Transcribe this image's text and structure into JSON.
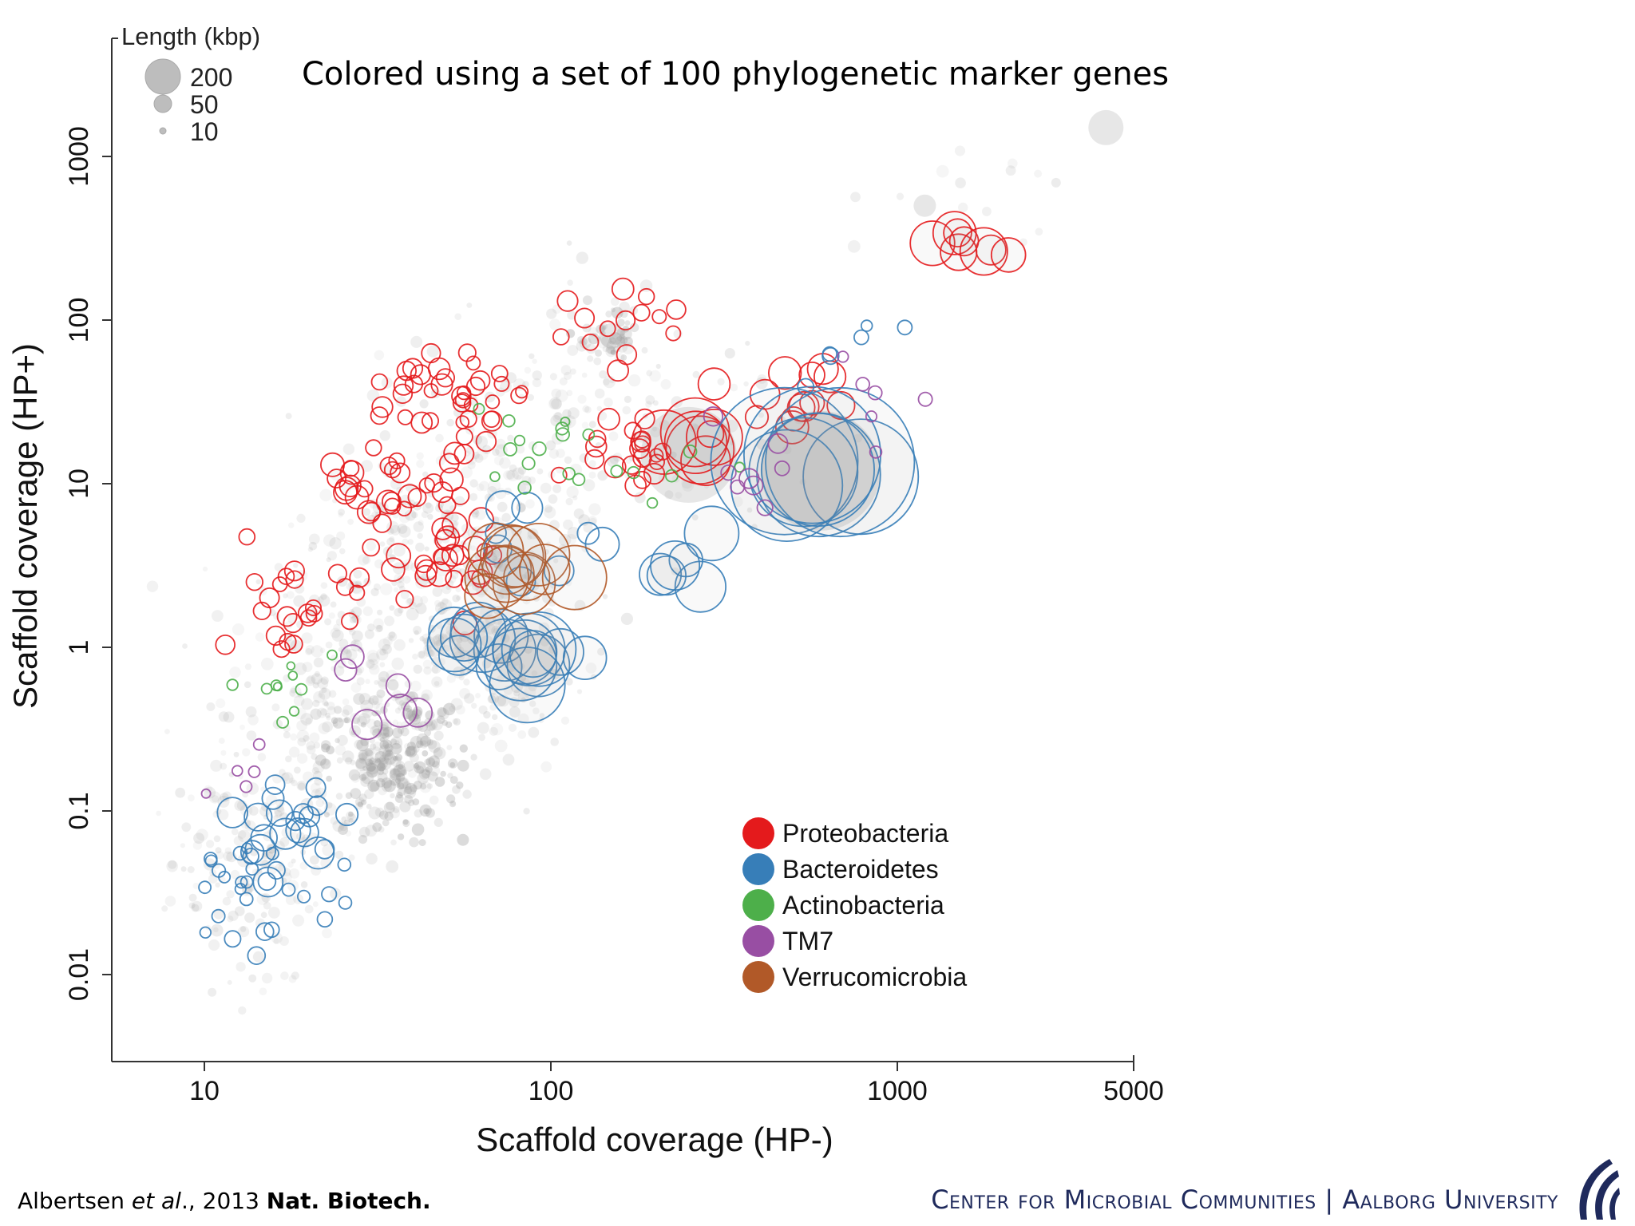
{
  "slide": {
    "title": "Colored using a set of 100 phylogenetic marker genes",
    "citation": {
      "authors_prefix": "Albertsen ",
      "et_al": "et al",
      "year_part": "., 2013 ",
      "journal": "Nat. Biotech."
    },
    "org_left": "Center for Microbial Communities",
    "org_sep": "|",
    "org_right": "Aalborg University",
    "logo_icon": "aalborg-wave-logo-icon"
  },
  "chart_data": {
    "type": "scatter",
    "xlabel": "Scaffold coverage (HP-)",
    "ylabel": "Scaffold coverage (HP+)",
    "xscale": "log",
    "yscale": "log",
    "xlim": [
      5,
      5000
    ],
    "ylim": [
      0.003,
      3000
    ],
    "xticks": [
      10,
      100,
      1000,
      5000
    ],
    "xtick_labels": [
      "10",
      "100",
      "1000",
      "5000"
    ],
    "yticks": [
      0.01,
      0.1,
      1,
      10,
      100,
      1000
    ],
    "ytick_labels": [
      "0.01",
      "0.1",
      "1",
      "10",
      "100",
      "1000"
    ],
    "grid": false,
    "size_legend": {
      "title": "Length (kbp)",
      "entries": [
        {
          "label": "200",
          "length_kbp": 200
        },
        {
          "label": "50",
          "length_kbp": 50
        },
        {
          "label": "10",
          "length_kbp": 10
        }
      ],
      "placement": "top-left"
    },
    "legend_placement": "bottom-right",
    "background_color": "#9e9e9e",
    "series": [
      {
        "name": "Proteobacteria",
        "color": "#e41a1c",
        "clusters": [
          {
            "x": 30,
            "y": 9,
            "length": 12,
            "count": 30
          },
          {
            "x": 20,
            "y": 1.5,
            "length": 8,
            "count": 24
          },
          {
            "x": 45,
            "y": 30,
            "length": 10,
            "count": 24
          },
          {
            "x": 60,
            "y": 40,
            "length": 8,
            "count": 16
          },
          {
            "x": 55,
            "y": 3.5,
            "length": 14,
            "count": 24
          },
          {
            "x": 160,
            "y": 80,
            "length": 10,
            "count": 14
          },
          {
            "x": 160,
            "y": 15,
            "length": 10,
            "count": 20
          },
          {
            "x": 250,
            "y": 17,
            "length": 150,
            "count": 6
          },
          {
            "x": 450,
            "y": 35,
            "length": 30,
            "count": 14
          },
          {
            "x": 1650,
            "y": 300,
            "length": 60,
            "count": 8
          }
        ]
      },
      {
        "name": "Bacteroidetes",
        "color": "#377eb8",
        "clusters": [
          {
            "x": 18,
            "y": 0.08,
            "length": 25,
            "count": 20
          },
          {
            "x": 17,
            "y": 0.03,
            "length": 6,
            "count": 14
          },
          {
            "x": 13,
            "y": 0.04,
            "length": 3,
            "count": 14
          },
          {
            "x": 55,
            "y": 1.1,
            "length": 120,
            "count": 8
          },
          {
            "x": 90,
            "y": 0.85,
            "length": 160,
            "count": 10
          },
          {
            "x": 95,
            "y": 3.5,
            "length": 30,
            "count": 8
          },
          {
            "x": 240,
            "y": 2.7,
            "length": 90,
            "count": 6
          },
          {
            "x": 580,
            "y": 12,
            "length": 700,
            "count": 8
          },
          {
            "x": 650,
            "y": 60,
            "length": 6,
            "count": 6
          }
        ]
      },
      {
        "name": "Actinobacteria",
        "color": "#4daf4a",
        "clusters": [
          {
            "x": 85,
            "y": 18,
            "length": 3,
            "count": 14
          },
          {
            "x": 18,
            "y": 0.5,
            "length": 2,
            "count": 10
          },
          {
            "x": 220,
            "y": 14,
            "length": 3,
            "count": 6
          }
        ]
      },
      {
        "name": "TM7",
        "color": "#984ea3",
        "clusters": [
          {
            "x": 34,
            "y": 0.45,
            "length": 30,
            "count": 6
          },
          {
            "x": 400,
            "y": 12,
            "length": 8,
            "count": 8
          },
          {
            "x": 850,
            "y": 42,
            "length": 5,
            "count": 6
          },
          {
            "x": 13,
            "y": 0.18,
            "length": 2,
            "count": 5
          }
        ]
      },
      {
        "name": "Verrucomicrobia",
        "color": "#b15928",
        "clusters": [
          {
            "x": 82,
            "y": 2.8,
            "length": 120,
            "count": 12
          }
        ]
      }
    ]
  }
}
